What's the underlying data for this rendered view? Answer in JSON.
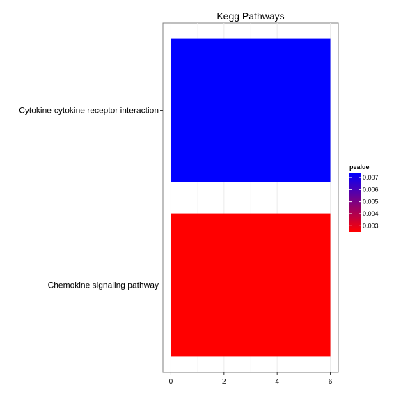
{
  "chart_data": {
    "type": "bar",
    "orientation": "horizontal",
    "title": "Kegg Pathways",
    "xlabel": "",
    "ylabel": "",
    "categories": [
      "Cytokine-cytokine receptor interaction",
      "Chemokine signaling pathway"
    ],
    "values": [
      6,
      6
    ],
    "pvalue": [
      0.0074,
      0.0025
    ],
    "xlim": [
      -0.3,
      6.3
    ],
    "xticks": [
      0,
      2,
      4,
      6
    ],
    "grid": true,
    "legend": {
      "title": "pvalue",
      "placement": "right",
      "range": [
        0.0025,
        0.0074
      ],
      "ticks": [
        0.007,
        0.006,
        0.005,
        0.004,
        0.003
      ],
      "tick_labels": [
        "0.007",
        "0.006",
        "0.005",
        "0.004",
        "0.003"
      ],
      "color_low": "#ff0000",
      "color_high": "#0000ff"
    }
  }
}
